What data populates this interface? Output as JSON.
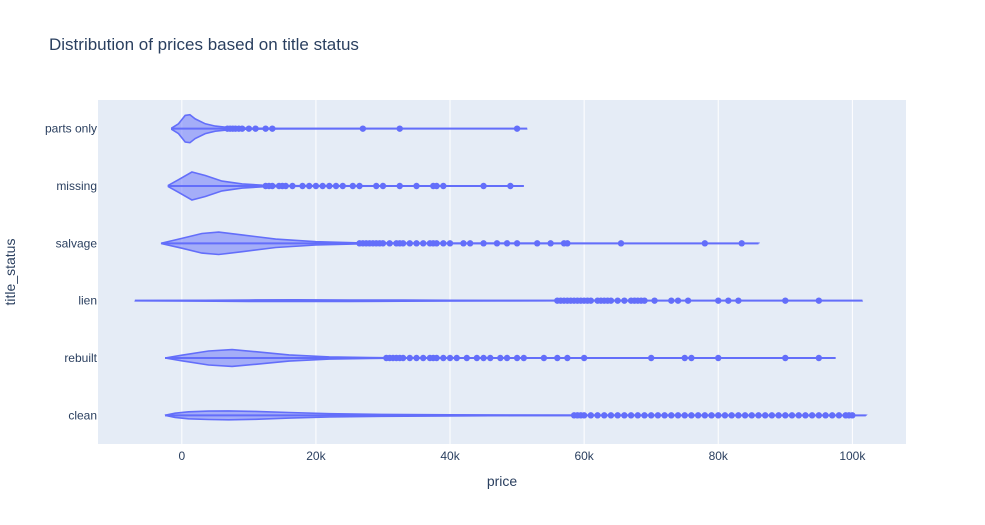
{
  "chart_data": {
    "type": "violin",
    "title": "Distribution of prices based on title status",
    "xlabel": "price",
    "ylabel": "title_status",
    "xlim": [
      -12500,
      108000
    ],
    "x_ticks": [
      0,
      20000,
      40000,
      60000,
      80000,
      100000
    ],
    "x_tick_labels": [
      "0",
      "20k",
      "40k",
      "60k",
      "80k",
      "100k"
    ],
    "grid": true,
    "categories": [
      "parts only",
      "missing",
      "salvage",
      "lien",
      "rebuilt",
      "clean"
    ],
    "colors": {
      "series": "#636efa",
      "plot_bg": "#e5ecf6",
      "grid": "#ffffff",
      "text": "#2a3f5f"
    },
    "series": [
      {
        "category": "parts only",
        "range": [
          -1500,
          51500
        ],
        "density": [
          [
            -1500,
            0.05
          ],
          [
            -500,
            0.35
          ],
          [
            500,
            0.95
          ],
          [
            1200,
            1.0
          ],
          [
            2000,
            0.7
          ],
          [
            3500,
            0.35
          ],
          [
            5000,
            0.18
          ],
          [
            7000,
            0.08
          ],
          [
            10000,
            0.03
          ],
          [
            15000,
            0.01
          ],
          [
            51500,
            0.0
          ]
        ],
        "outliers": [
          6800,
          7200,
          7600,
          8000,
          8500,
          9000,
          10000,
          11000,
          12500,
          13500,
          27000,
          32500,
          50000
        ]
      },
      {
        "category": "missing",
        "range": [
          -2000,
          51000
        ],
        "density": [
          [
            -2000,
            0.05
          ],
          [
            -500,
            0.45
          ],
          [
            1500,
            1.0
          ],
          [
            3500,
            0.75
          ],
          [
            6000,
            0.35
          ],
          [
            9000,
            0.15
          ],
          [
            12000,
            0.06
          ],
          [
            16000,
            0.02
          ],
          [
            51000,
            0.0
          ]
        ],
        "outliers": [
          12500,
          13000,
          13500,
          14500,
          15000,
          15500,
          16500,
          18000,
          19000,
          20000,
          21000,
          22000,
          23000,
          24000,
          25500,
          26500,
          29000,
          30000,
          32500,
          35000,
          37500,
          38000,
          39000,
          45000,
          49000
        ]
      },
      {
        "category": "salvage",
        "range": [
          -3000,
          86000
        ],
        "density": [
          [
            -3000,
            0.02
          ],
          [
            0,
            0.35
          ],
          [
            3000,
            0.7
          ],
          [
            5500,
            0.8
          ],
          [
            9000,
            0.6
          ],
          [
            14000,
            0.3
          ],
          [
            20000,
            0.12
          ],
          [
            26000,
            0.04
          ],
          [
            35000,
            0.01
          ],
          [
            86000,
            0.0
          ]
        ],
        "outliers": [
          26500,
          27000,
          27500,
          28000,
          28500,
          29000,
          29500,
          30000,
          31000,
          32000,
          32500,
          33000,
          34000,
          35000,
          36000,
          37000,
          37500,
          38000,
          39000,
          40000,
          42000,
          43000,
          45000,
          47000,
          48500,
          50000,
          53000,
          55000,
          57000,
          57500,
          65500,
          78000,
          83500
        ]
      },
      {
        "category": "lien",
        "range": [
          -7000,
          101500
        ],
        "density": [
          [
            -7000,
            0.0
          ],
          [
            0,
            0.02
          ],
          [
            10000,
            0.05
          ],
          [
            17000,
            0.06
          ],
          [
            25000,
            0.05
          ],
          [
            33000,
            0.04
          ],
          [
            40000,
            0.025
          ],
          [
            47000,
            0.01
          ],
          [
            55000,
            0.003
          ],
          [
            101500,
            0.0
          ]
        ],
        "outliers": [
          56000,
          56500,
          57000,
          57500,
          58000,
          58500,
          59000,
          59500,
          60000,
          60500,
          61000,
          62000,
          62500,
          63000,
          63500,
          64000,
          65000,
          66000,
          67000,
          67500,
          68000,
          68500,
          69000,
          70500,
          73000,
          74000,
          75500,
          80000,
          81500,
          83000,
          90000,
          95000
        ]
      },
      {
        "category": "rebuilt",
        "range": [
          -2500,
          97500
        ],
        "density": [
          [
            -2500,
            0.0
          ],
          [
            0,
            0.2
          ],
          [
            4000,
            0.5
          ],
          [
            7500,
            0.6
          ],
          [
            11000,
            0.45
          ],
          [
            16000,
            0.22
          ],
          [
            22000,
            0.08
          ],
          [
            28000,
            0.03
          ],
          [
            35000,
            0.005
          ],
          [
            97500,
            0.0
          ]
        ],
        "outliers": [
          30500,
          31000,
          31500,
          32000,
          32500,
          33000,
          34000,
          35000,
          36000,
          37000,
          37500,
          38000,
          39000,
          40000,
          41000,
          42500,
          44000,
          45000,
          46000,
          47500,
          48500,
          50000,
          51000,
          54000,
          56000,
          57500,
          60000,
          70000,
          75000,
          76000,
          80000,
          90000,
          95000
        ]
      },
      {
        "category": "clean",
        "range": [
          -2500,
          102000
        ],
        "density": [
          [
            -2500,
            0.0
          ],
          [
            -1000,
            0.15
          ],
          [
            1000,
            0.25
          ],
          [
            4000,
            0.3
          ],
          [
            7000,
            0.32
          ],
          [
            11000,
            0.28
          ],
          [
            16000,
            0.2
          ],
          [
            22000,
            0.12
          ],
          [
            30000,
            0.07
          ],
          [
            40000,
            0.04
          ],
          [
            50000,
            0.02
          ],
          [
            60000,
            0.008
          ],
          [
            102000,
            0.0
          ]
        ],
        "outliers": [
          58500,
          59000,
          59500,
          60000,
          61000,
          62000,
          63000,
          64000,
          65000,
          66000,
          67000,
          68000,
          69000,
          70000,
          71000,
          72000,
          73000,
          74000,
          75000,
          76000,
          77000,
          78000,
          79000,
          80000,
          81000,
          82000,
          83000,
          84000,
          85000,
          86000,
          87000,
          88000,
          89000,
          90000,
          91000,
          92000,
          93000,
          94000,
          95000,
          96000,
          97000,
          98000,
          99000,
          99500,
          100000
        ]
      }
    ]
  }
}
